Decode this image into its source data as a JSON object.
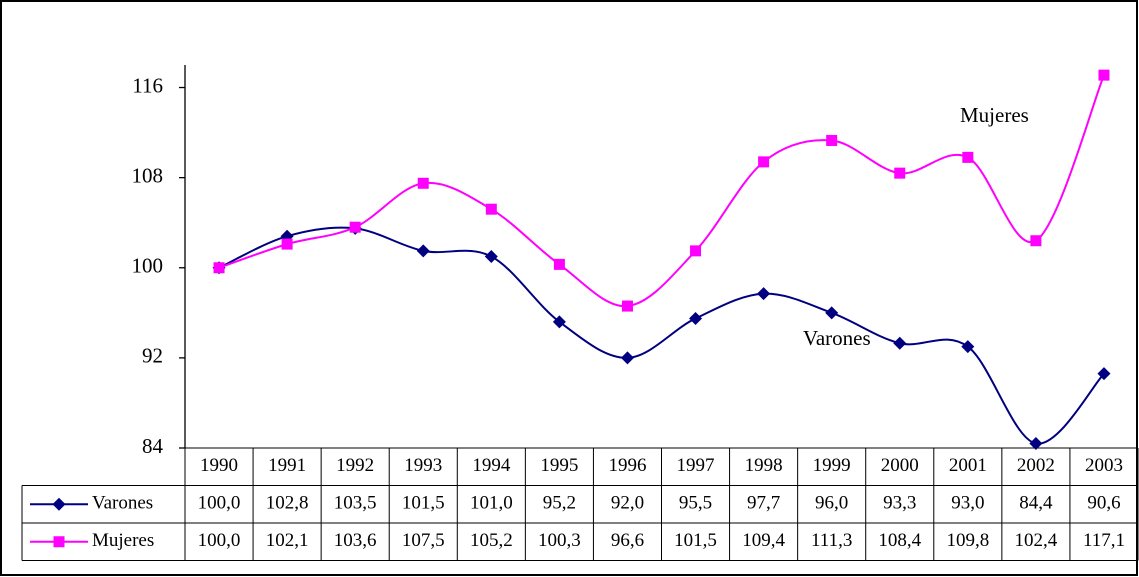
{
  "chart_data": {
    "type": "line",
    "categories": [
      "1990",
      "1991",
      "1992",
      "1993",
      "1994",
      "1995",
      "1996",
      "1997",
      "1998",
      "1999",
      "2000",
      "2001",
      "2002",
      "2003"
    ],
    "series": [
      {
        "name": "Varones",
        "color": "#000080",
        "marker": "diamond",
        "values": [
          100.0,
          102.8,
          103.5,
          101.5,
          101.0,
          95.2,
          92.0,
          95.5,
          97.7,
          96.0,
          93.3,
          93.0,
          84.4,
          90.6
        ],
        "value_labels": [
          "100,0",
          "102,8",
          "103,5",
          "101,5",
          "101,0",
          "95,2",
          "92,0",
          "95,5",
          "97,7",
          "96,0",
          "93,3",
          "93,0",
          "84,4",
          "90,6"
        ]
      },
      {
        "name": "Mujeres",
        "color": "#ff00ff",
        "marker": "square",
        "values": [
          100.0,
          102.1,
          103.6,
          107.5,
          105.2,
          100.3,
          96.6,
          101.5,
          109.4,
          111.3,
          108.4,
          109.8,
          102.4,
          117.1
        ],
        "value_labels": [
          "100,0",
          "102,1",
          "103,6",
          "107,5",
          "105,2",
          "100,3",
          "96,6",
          "101,5",
          "109,4",
          "111,3",
          "108,4",
          "109,8",
          "102,4",
          "117,1"
        ]
      }
    ],
    "annotations": [
      "Mujeres",
      "Varones"
    ],
    "ylim": [
      84,
      118
    ],
    "yticks": [
      84,
      92,
      100,
      108,
      116
    ],
    "smooth": true,
    "data_table": true
  }
}
